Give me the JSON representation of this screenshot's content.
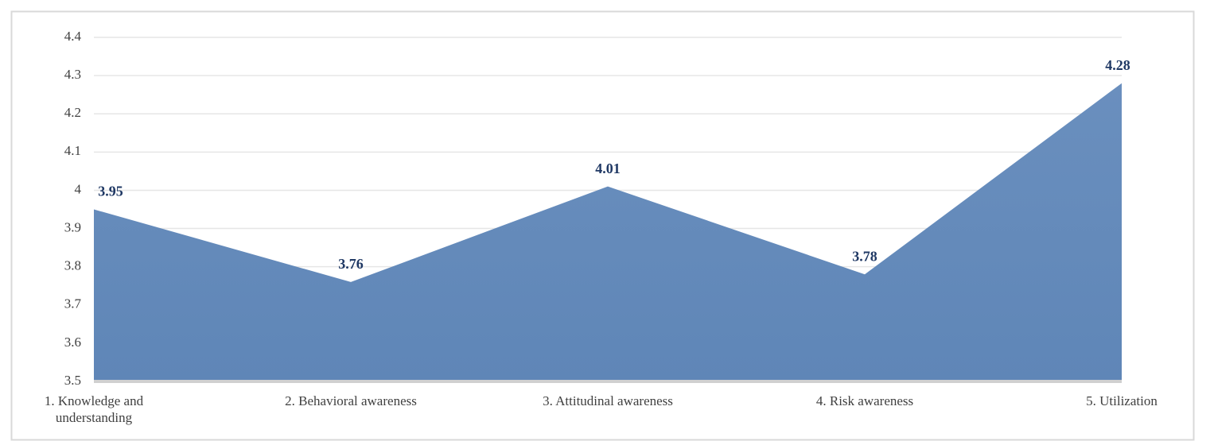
{
  "chart_data": {
    "type": "area",
    "categories": [
      "1. Knowledge and understanding",
      "2. Behavioral awareness",
      "3. Attitudinal awareness",
      "4. Risk awareness",
      "5. Utilization"
    ],
    "values": [
      3.95,
      3.76,
      4.01,
      3.78,
      4.28
    ],
    "color": "#6a8fbe",
    "label_color": "#1f3864",
    "ylim": [
      3.5,
      4.4
    ],
    "yticks": [
      3.5,
      3.6,
      3.7,
      3.8,
      3.9,
      4,
      4.1,
      4.2,
      4.3,
      4.4
    ],
    "grid": true
  }
}
